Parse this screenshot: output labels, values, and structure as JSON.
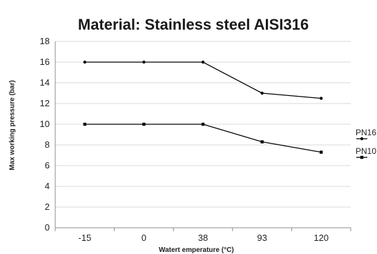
{
  "chart_data": {
    "type": "line",
    "title": "Material: Stainless steel AISI316",
    "xlabel": "Watert emperature (°C)",
    "ylabel": "Max working pressure (bar)",
    "categories": [
      "-15",
      "0",
      "38",
      "93",
      "120"
    ],
    "ylim": [
      0,
      18
    ],
    "yticks": [
      0,
      2,
      4,
      6,
      8,
      10,
      12,
      14,
      16,
      18
    ],
    "grid": "horizontal",
    "legend_position": "right",
    "series": [
      {
        "name": "PN16",
        "values": [
          16,
          16,
          16,
          13,
          12.5
        ],
        "marker": "circle",
        "color": "#000000"
      },
      {
        "name": "PN10",
        "values": [
          10,
          10,
          10,
          8.3,
          7.3
        ],
        "marker": "square",
        "color": "#000000"
      }
    ]
  }
}
